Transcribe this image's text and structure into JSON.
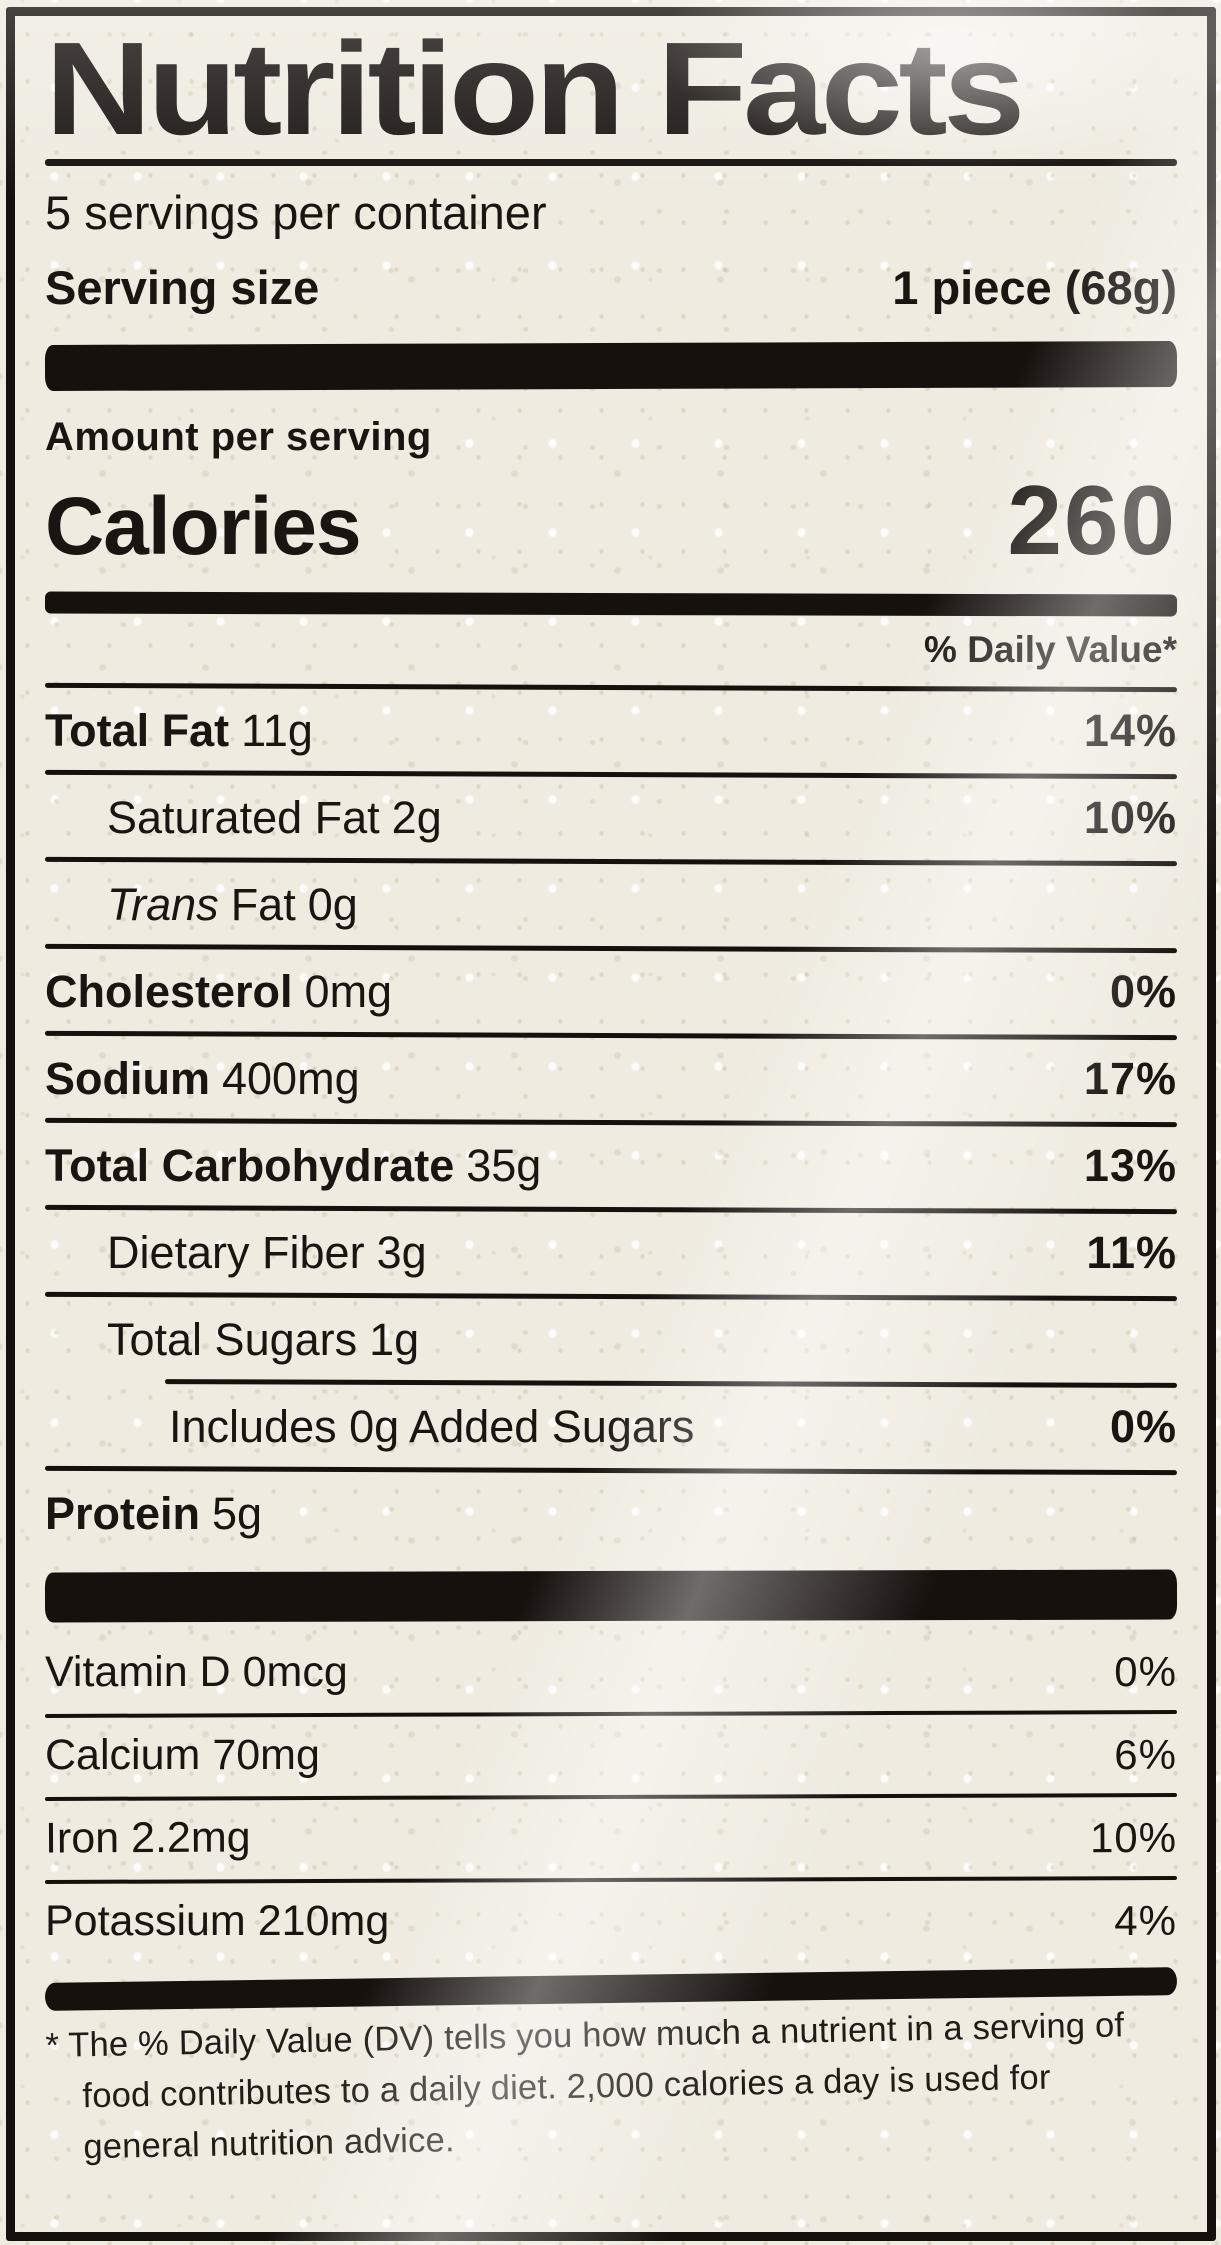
{
  "label": {
    "title": "Nutrition Facts",
    "servings_per_container": "5 servings per container",
    "serving_size_label": "Serving size",
    "serving_size_value": "1 piece (68g)",
    "amount_per_serving": "Amount per serving",
    "calories_label": "Calories",
    "calories_value": "260",
    "daily_value_header": "% Daily Value*",
    "nutrients": [
      {
        "name": "Total Fat",
        "amount": "11g",
        "dv": "14%"
      },
      {
        "name": "Saturated Fat",
        "amount": "2g",
        "dv": "10%"
      },
      {
        "name_italic": "Trans",
        "name_rest": "Fat",
        "amount": "0g",
        "dv": ""
      },
      {
        "name": "Cholesterol",
        "amount": "0mg",
        "dv": "0%"
      },
      {
        "name": "Sodium",
        "amount": "400mg",
        "dv": "17%"
      },
      {
        "name": "Total Carbohydrate",
        "amount": "35g",
        "dv": "13%"
      },
      {
        "name": "Dietary Fiber",
        "amount": "3g",
        "dv": "11%"
      },
      {
        "name": "Total Sugars",
        "amount": "1g",
        "dv": ""
      },
      {
        "name": "Includes 0g Added Sugars",
        "amount": "",
        "dv": "0%"
      },
      {
        "name": "Protein",
        "amount": "5g",
        "dv": ""
      }
    ],
    "vitamins": [
      {
        "name": "Vitamin D",
        "amount": "0mcg",
        "dv": "0%"
      },
      {
        "name": "Calcium",
        "amount": "70mg",
        "dv": "6%"
      },
      {
        "name": "Iron",
        "amount": "2.2mg",
        "dv": "10%"
      },
      {
        "name": "Potassium",
        "amount": "210mg",
        "dv": "4%"
      }
    ],
    "footnote": "* The % Daily Value (DV) tells you how much a nutrient in a serving of food contributes to a daily diet. 2,000 calories a day is used for general nutrition advice."
  }
}
